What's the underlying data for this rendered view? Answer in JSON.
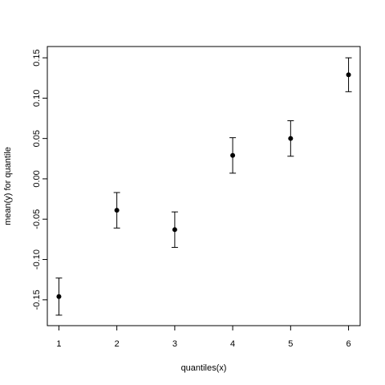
{
  "chart_data": {
    "type": "errorbar",
    "x_label": "quantiles(x)",
    "y_label": "mean(y) for quantile",
    "x": [
      1,
      2,
      3,
      4,
      5,
      6
    ],
    "values": [
      -0.146,
      -0.039,
      -0.063,
      0.029,
      0.05,
      0.129
    ],
    "errors": [
      0.023,
      0.022,
      0.022,
      0.022,
      0.022,
      0.021
    ],
    "color": "#000000",
    "xlim": [
      0.8,
      6.2
    ],
    "ylim": [
      -0.182,
      0.164
    ],
    "xticks": [
      1,
      2,
      3,
      4,
      5,
      6
    ],
    "yticks": [
      -0.15,
      {
        "value": -0.1,
        "label": "-0.10"
      },
      -0.05,
      {
        "value": 0,
        "label": "0.00"
      },
      0.05,
      {
        "value": 0.1,
        "label": "0.10"
      },
      0.15
    ],
    "grid": false
  }
}
